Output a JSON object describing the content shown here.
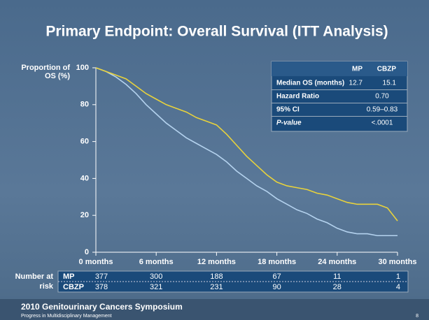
{
  "chart_data": {
    "type": "line",
    "title": "Primary Endpoint: Overall Survival (ITT Analysis)",
    "y_label": "Proportion of OS (%)",
    "x": [
      0,
      1,
      2,
      3,
      4,
      5,
      6,
      7,
      8,
      9,
      10,
      11,
      12,
      13,
      14,
      15,
      16,
      17,
      18,
      19,
      20,
      21,
      22,
      23,
      24,
      25,
      26,
      27,
      28,
      29,
      30
    ],
    "series": [
      {
        "name": "MP",
        "color": "#b4d2ee",
        "values": [
          100,
          98,
          95,
          91,
          86,
          80,
          75,
          70,
          66,
          62,
          59,
          56,
          53,
          49,
          44,
          40,
          36,
          33,
          29,
          26,
          23,
          21,
          18,
          16,
          13,
          11,
          10,
          10,
          9,
          9,
          9
        ]
      },
      {
        "name": "CBZP",
        "color": "#e8d23c",
        "values": [
          100,
          98,
          96,
          94,
          90,
          86,
          83,
          80,
          78,
          76,
          73,
          71,
          69,
          64,
          58,
          52,
          47,
          42,
          38,
          36,
          35,
          34,
          32,
          31,
          29,
          27,
          26,
          26,
          26,
          24,
          17
        ]
      }
    ],
    "xlim": [
      0,
      30
    ],
    "ylim": [
      0,
      100
    ],
    "xticks": [
      {
        "value": 0,
        "label": "0 months"
      },
      {
        "value": 6,
        "label": "6 months"
      },
      {
        "value": 12,
        "label": "12 months"
      },
      {
        "value": 18,
        "label": "18 months"
      },
      {
        "value": 24,
        "label": "24 months"
      },
      {
        "value": 30,
        "label": "30 months"
      }
    ],
    "yticks": [
      0,
      20,
      40,
      60,
      80,
      100
    ]
  },
  "stats_table": {
    "columns": [
      "MP",
      "CBZP"
    ],
    "rows": [
      {
        "label": "Median OS (months)",
        "values": [
          "12.7",
          "15.1"
        ]
      },
      {
        "label": "Hazard Ratio",
        "value": "0.70"
      },
      {
        "label": "95% CI",
        "value": "0.59–0.83"
      },
      {
        "label": "P-value",
        "value": "<.0001"
      }
    ]
  },
  "risk_table": {
    "label": "Number at risk",
    "rows": [
      {
        "name": "MP",
        "values": [
          377,
          300,
          188,
          67,
          11,
          1
        ]
      },
      {
        "name": "CBZP",
        "values": [
          378,
          321,
          231,
          90,
          28,
          4
        ]
      }
    ]
  },
  "footer": {
    "title": "2010 Genitourinary Cancers Symposium",
    "subtitle": "Progress in Multidisciplinary Management",
    "page": "8"
  }
}
